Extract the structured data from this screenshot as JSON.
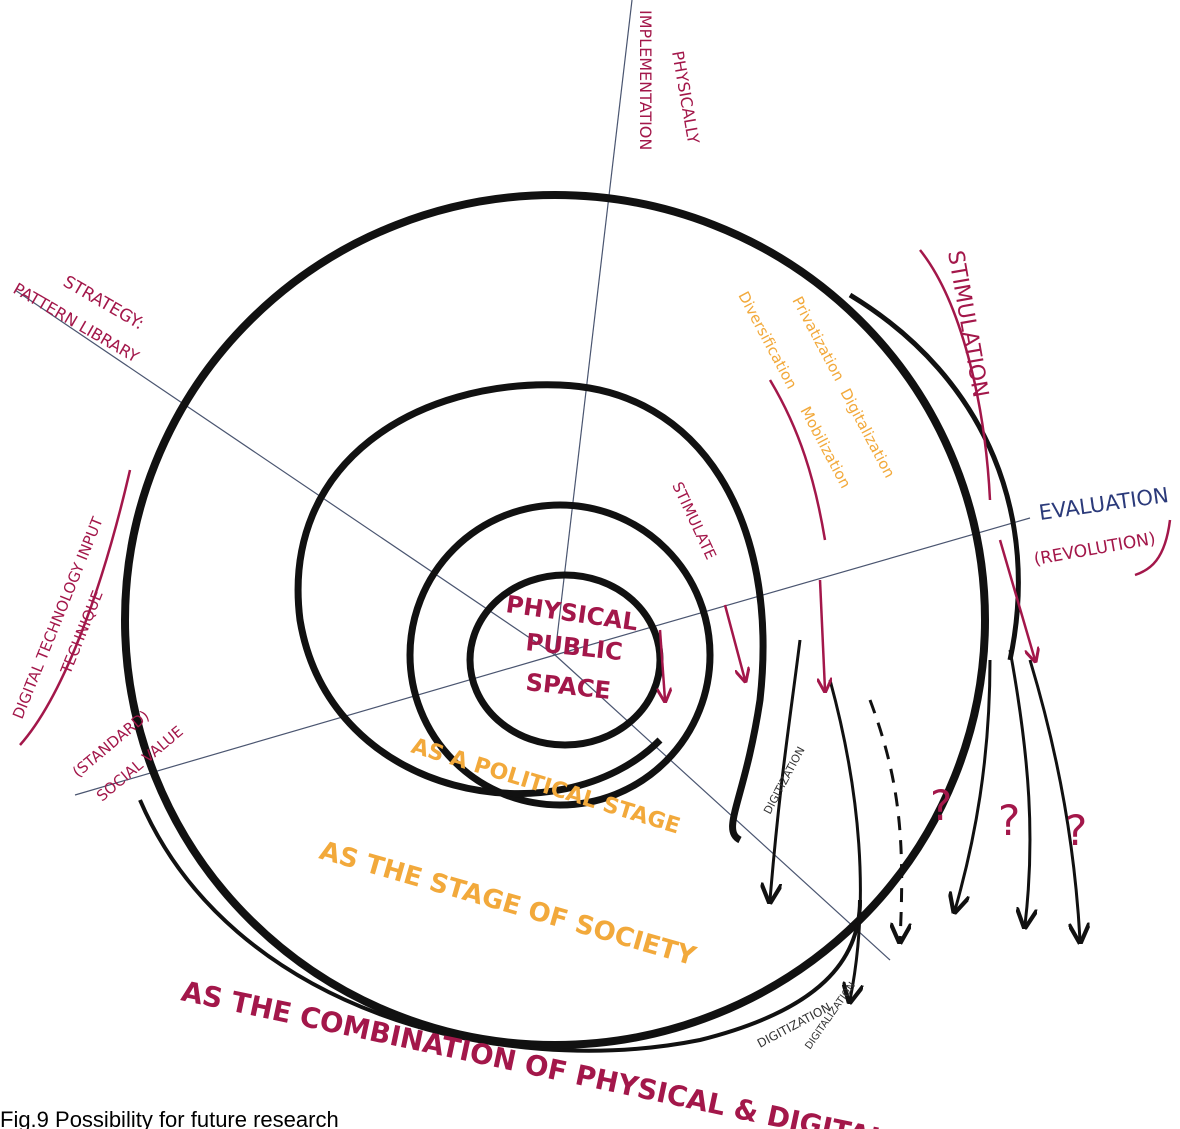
{
  "labels": {
    "implementation": "IMPLEMENTATION",
    "physically": "PHYSICALLY",
    "strategy": "STRATEGY:",
    "pattern_library": "PATTERN LIBRARY",
    "digital_technology_input": "DIGITAL TECHNOLOGY INPUT",
    "technique": "TECHNIQUE",
    "standard": "(STANDARD)",
    "social_value": "SOCIAL VALUE",
    "stimulation": "STIMULATION",
    "evaluation": "EVALUATION",
    "revolution": "(REVOLUTION)",
    "stimulate": "STIMULATE",
    "privatization": "Privatization",
    "digitalization": "Digitalization",
    "diversification": "Diversification",
    "mobilization": "Mobilization",
    "center": [
      "PHYSICAL",
      "PUBLIC",
      "SPACE"
    ],
    "political_stage": "AS A POLITICAL STAGE",
    "stage_of_society": "AS THE STAGE OF SOCIETY",
    "combination": "AS THE COMBINATION OF PHYSICAL & DIGITAL",
    "digitization_1": "DIGITIZATION",
    "digitization_2": "DIGITIZATION",
    "digitalization_bottom": "DIGITALIZATION",
    "questions": [
      "?",
      "?",
      "?"
    ]
  },
  "caption": "Fig.9 Possibility for future research"
}
